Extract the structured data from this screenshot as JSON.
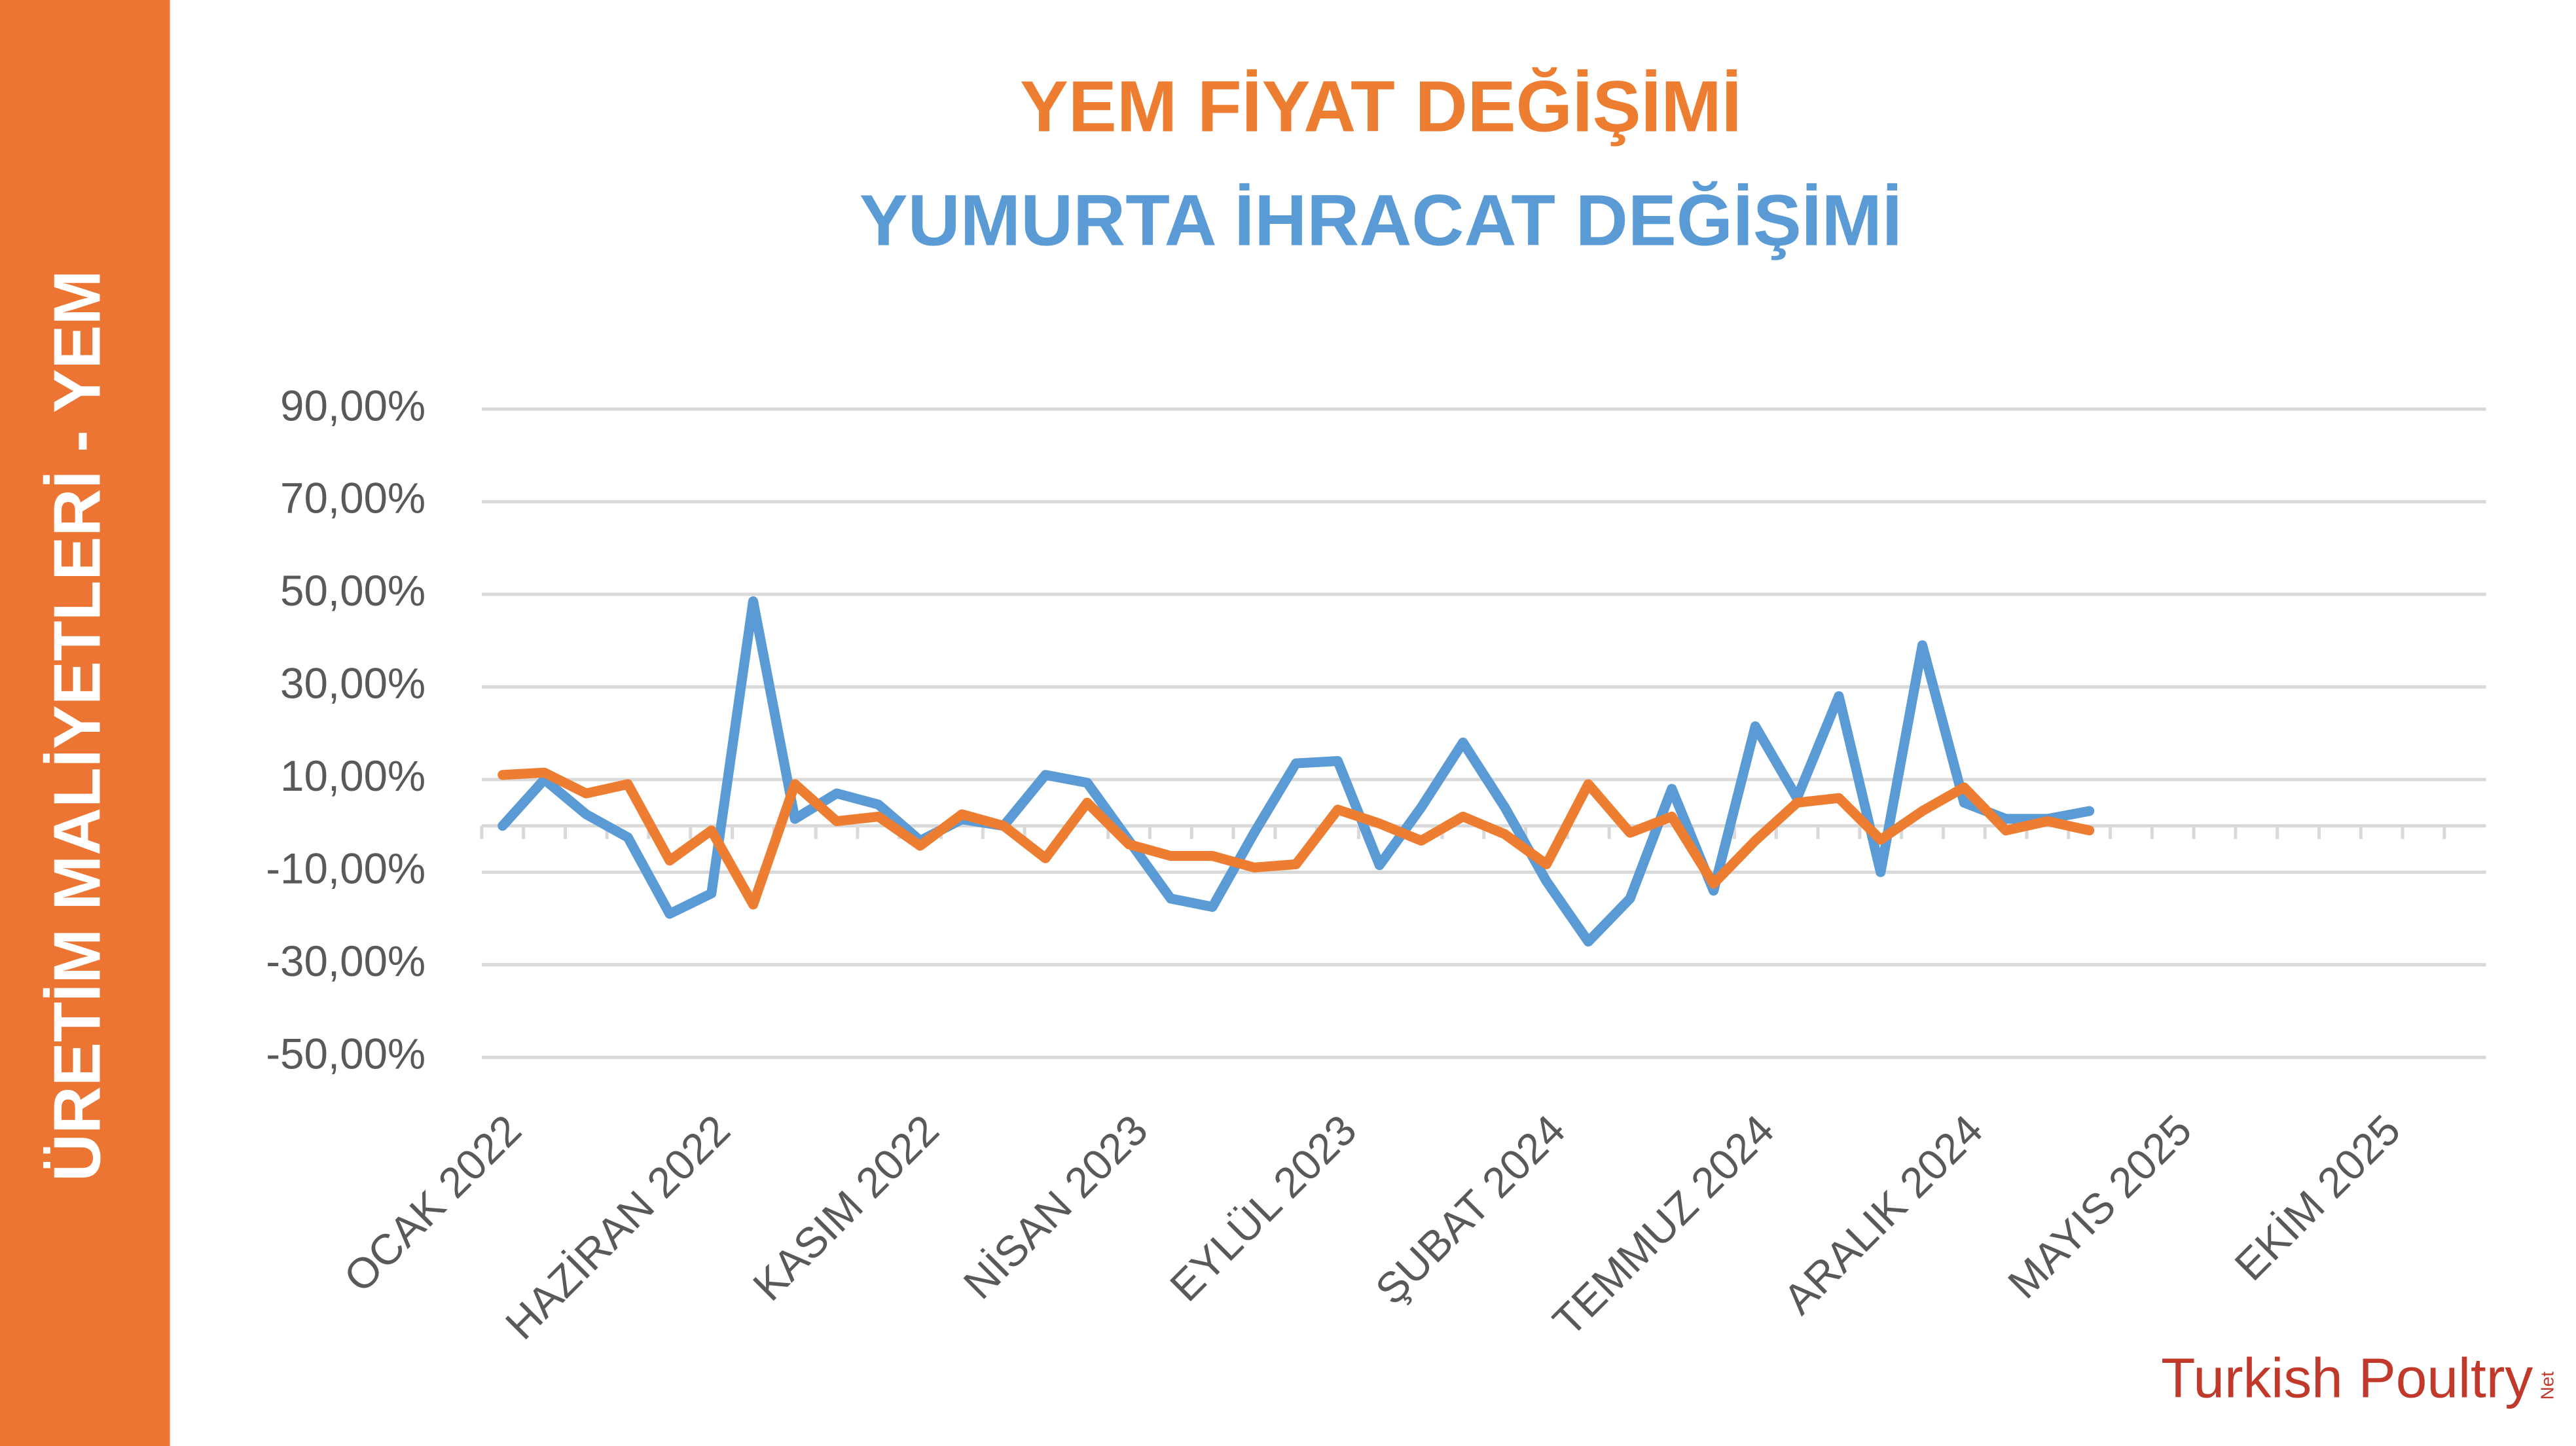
{
  "chart_data": {
    "type": "line",
    "side_title": "ÜRETİM MALİYETLERİ - YEM",
    "logo": "Turkish Poultry",
    "logo_suffix": "Net",
    "categories": [
      "OCAK 2022",
      null,
      null,
      null,
      null,
      "HAZİRAN 2022",
      null,
      null,
      null,
      null,
      "KASIM 2022",
      null,
      null,
      null,
      null,
      "NİSAN 2023",
      null,
      null,
      null,
      null,
      "EYLÜL 2023",
      null,
      null,
      null,
      null,
      "ŞUBAT 2024",
      null,
      null,
      null,
      null,
      "TEMMUZ 2024",
      null,
      null,
      null,
      null,
      "ARALIK 2024",
      null,
      null,
      null,
      null,
      "MAYIS 2025",
      null,
      null,
      null,
      null,
      "EKİM 2025",
      null,
      null
    ],
    "series": [
      {
        "name": "YEM FİYAT DEĞİŞİMİ",
        "color": "#ed7d31",
        "values": [
          11,
          11.5,
          7,
          9,
          -7.5,
          -1,
          -17,
          9,
          1,
          2,
          -4.3,
          2.5,
          0,
          -7,
          5,
          -4,
          -6.5,
          -6.5,
          -9,
          -8.3,
          3.5,
          0.5,
          -3.2,
          2,
          -1.8,
          -8.3,
          9,
          -1.5,
          2,
          -12.5,
          -3.2,
          5,
          6,
          -3,
          3.2,
          8.3,
          -1,
          1,
          -1,
          null,
          null,
          null,
          null,
          null,
          null,
          null,
          null,
          null
        ]
      },
      {
        "name": "YUMURTA İHRACAT DEĞİŞİMİ",
        "color": "#5b9bd5",
        "values": [
          0,
          10,
          2.5,
          -2.5,
          -19,
          -14.6,
          48.5,
          1.5,
          7,
          4.6,
          -3.2,
          1.4,
          0,
          11,
          9.3,
          -3.2,
          -15.7,
          -17.5,
          -1.5,
          13.5,
          14,
          -8.5,
          4,
          18,
          4,
          -12,
          -25,
          -15.7,
          8,
          -14,
          21.5,
          6,
          28,
          -10,
          39,
          5,
          1.5,
          1.5,
          3.2,
          null,
          null,
          null,
          null,
          null,
          null,
          null,
          null,
          null
        ]
      }
    ],
    "ylim": [
      -50,
      90
    ],
    "yticks": [
      {
        "value": -50,
        "label": "-50,00%"
      },
      {
        "value": -30,
        "label": "-30,00%"
      },
      {
        "value": -10,
        "label": "-10,00%"
      },
      {
        "value": 10,
        "label": "10,00%"
      },
      {
        "value": 30,
        "label": "30,00%"
      },
      {
        "value": 50,
        "label": "50,00%"
      },
      {
        "value": 70,
        "label": "70,00%"
      },
      {
        "value": 90,
        "label": "90,00%"
      }
    ],
    "grid": true
  }
}
